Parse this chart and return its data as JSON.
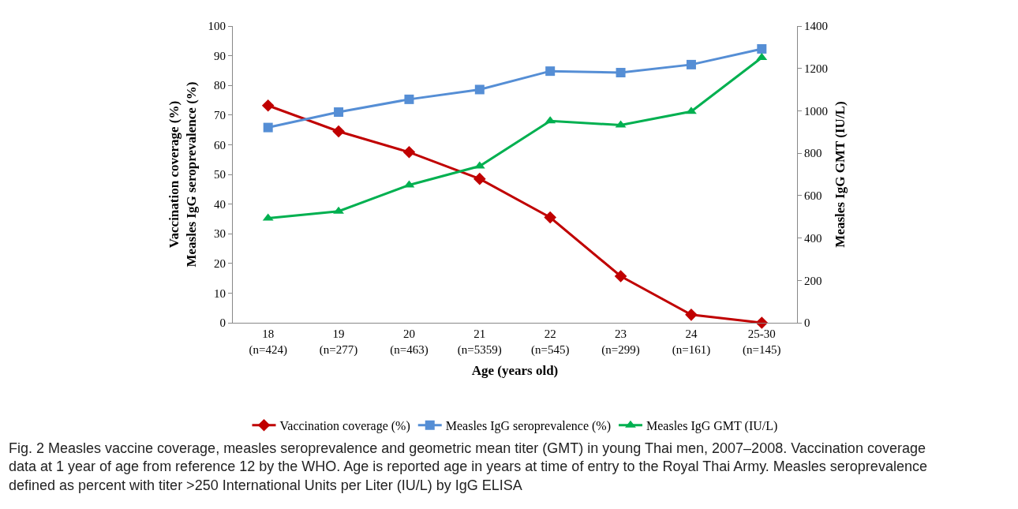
{
  "chart_data": {
    "type": "line",
    "categories": [
      "18\n(n=424)",
      "19\n(n=277)",
      "20\n(n=463)",
      "21\n(n=5359)",
      "22\n(n=545)",
      "23\n(n=299)",
      "24\n(n=161)",
      "25-30\n(n=145)"
    ],
    "series": [
      {
        "name": "Vaccination coverage (%)",
        "color": "#c00000",
        "marker": "diamond",
        "values": [
          73.2,
          64.5,
          57.5,
          48.5,
          35.5,
          15.7,
          2.7,
          0
        ]
      },
      {
        "name": "Measles IgG seroprevalence (%)",
        "color": "#558ed5",
        "marker": "square",
        "values": [
          65.8,
          71.0,
          75.3,
          78.6,
          84.8,
          84.3,
          87.0,
          92.3
        ]
      },
      {
        "name": "Measles IgG GMT (IU/L)",
        "color": "#00b050",
        "marker": "triangle",
        "axis": "y2",
        "values": [
          493,
          526,
          650,
          739,
          952,
          933,
          997,
          1251
        ]
      }
    ],
    "xlabel": "Age (years old)",
    "ylabel": "Vaccination coverage (%)\nMeasles IgG seroprevalence (%)",
    "y2label": "Measles IgG GMT (IU/L)",
    "ylim": [
      0,
      100
    ],
    "yticks": [
      0,
      10,
      20,
      30,
      40,
      50,
      60,
      70,
      80,
      90,
      100
    ],
    "y2lim": [
      0,
      1400
    ],
    "y2ticks": [
      0,
      200,
      400,
      600,
      800,
      1000,
      1200,
      1400
    ],
    "legend": "bottom",
    "annotations": [
      "Fig. 2 Measles vaccine coverage, measles seroprevalence and geometric mean titer (GMT) in young Thai men, 2007–2008. Vaccination coverage\ndata at 1 year of age from reference 12 by the WHO. Age is reported age in years at time of entry to the Royal Thai Army. Measles seroprevalence\ndefined as percent with titer >250 International Units per Liter (IU/L) by IgG ELISA"
    ]
  }
}
